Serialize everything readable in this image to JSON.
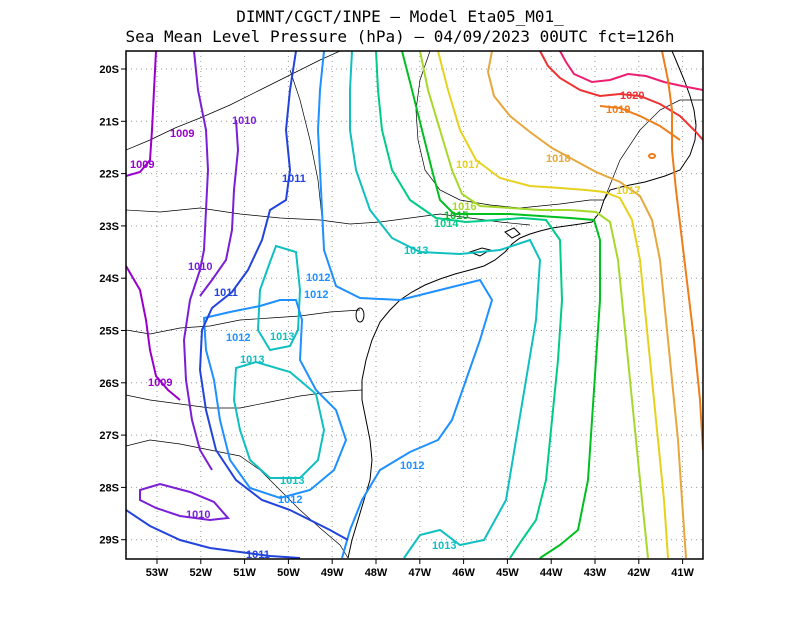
{
  "title": {
    "line1": "DIMNT/CGCT/INPE –  Model Eta05_M01_",
    "line2": "Sea Mean Level Pressure (hPa) – 04/09/2023 00UTC fct=126h"
  },
  "axes": {
    "lon_ticks": [
      "53W",
      "52W",
      "51W",
      "50W",
      "49W",
      "48W",
      "47W",
      "46W",
      "45W",
      "44W",
      "43W",
      "42W",
      "41W"
    ],
    "lat_ticks": [
      "20S",
      "21S",
      "22S",
      "23S",
      "24S",
      "25S",
      "26S",
      "27S",
      "28S",
      "29S"
    ]
  },
  "contour_labels": [
    {
      "text": "1009",
      "color": "#9900cc"
    },
    {
      "text": "1009",
      "color": "#9900cc"
    },
    {
      "text": "1009",
      "color": "#9900cc"
    },
    {
      "text": "1010",
      "color": "#7a1fd6"
    },
    {
      "text": "1010",
      "color": "#7a1fd6"
    },
    {
      "text": "1010",
      "color": "#7a1fd6"
    },
    {
      "text": "1011",
      "color": "#2244dd"
    },
    {
      "text": "1011",
      "color": "#2244dd"
    },
    {
      "text": "1011",
      "color": "#2244dd"
    },
    {
      "text": "1012",
      "color": "#1e90ff"
    },
    {
      "text": "1012",
      "color": "#1e90ff"
    },
    {
      "text": "1012",
      "color": "#1e90ff"
    },
    {
      "text": "1012",
      "color": "#1e90ff"
    },
    {
      "text": "1012",
      "color": "#1e90ff"
    },
    {
      "text": "1013",
      "color": "#10c0c0"
    },
    {
      "text": "1013",
      "color": "#10c0c0"
    },
    {
      "text": "1013",
      "color": "#10c0c0"
    },
    {
      "text": "1013",
      "color": "#10c0c0"
    },
    {
      "text": "1013",
      "color": "#10c0c0"
    },
    {
      "text": "1014",
      "color": "#00cc88"
    },
    {
      "text": "1015",
      "color": "#00c020"
    },
    {
      "text": "1016",
      "color": "#a6d82a"
    },
    {
      "text": "1017",
      "color": "#e6d21e"
    },
    {
      "text": "1017",
      "color": "#e6d21e"
    },
    {
      "text": "1018",
      "color": "#e6a73c"
    },
    {
      "text": "1019",
      "color": "#ee7d1a"
    },
    {
      "text": "1020",
      "color": "#ee3232"
    }
  ],
  "colors": {
    "c1009": "#9900cc",
    "c1010": "#7a1fd6",
    "c1011": "#2244dd",
    "c1012": "#1e90ff",
    "c1013": "#10c0c0",
    "c1014": "#00cc88",
    "c1015": "#00c020",
    "c1016": "#a6d82a",
    "c1017": "#e6d21e",
    "c1018": "#e6a73c",
    "c1019": "#ee7d1a",
    "c1020": "#ee3232",
    "c1021": "#ee1e6e"
  }
}
